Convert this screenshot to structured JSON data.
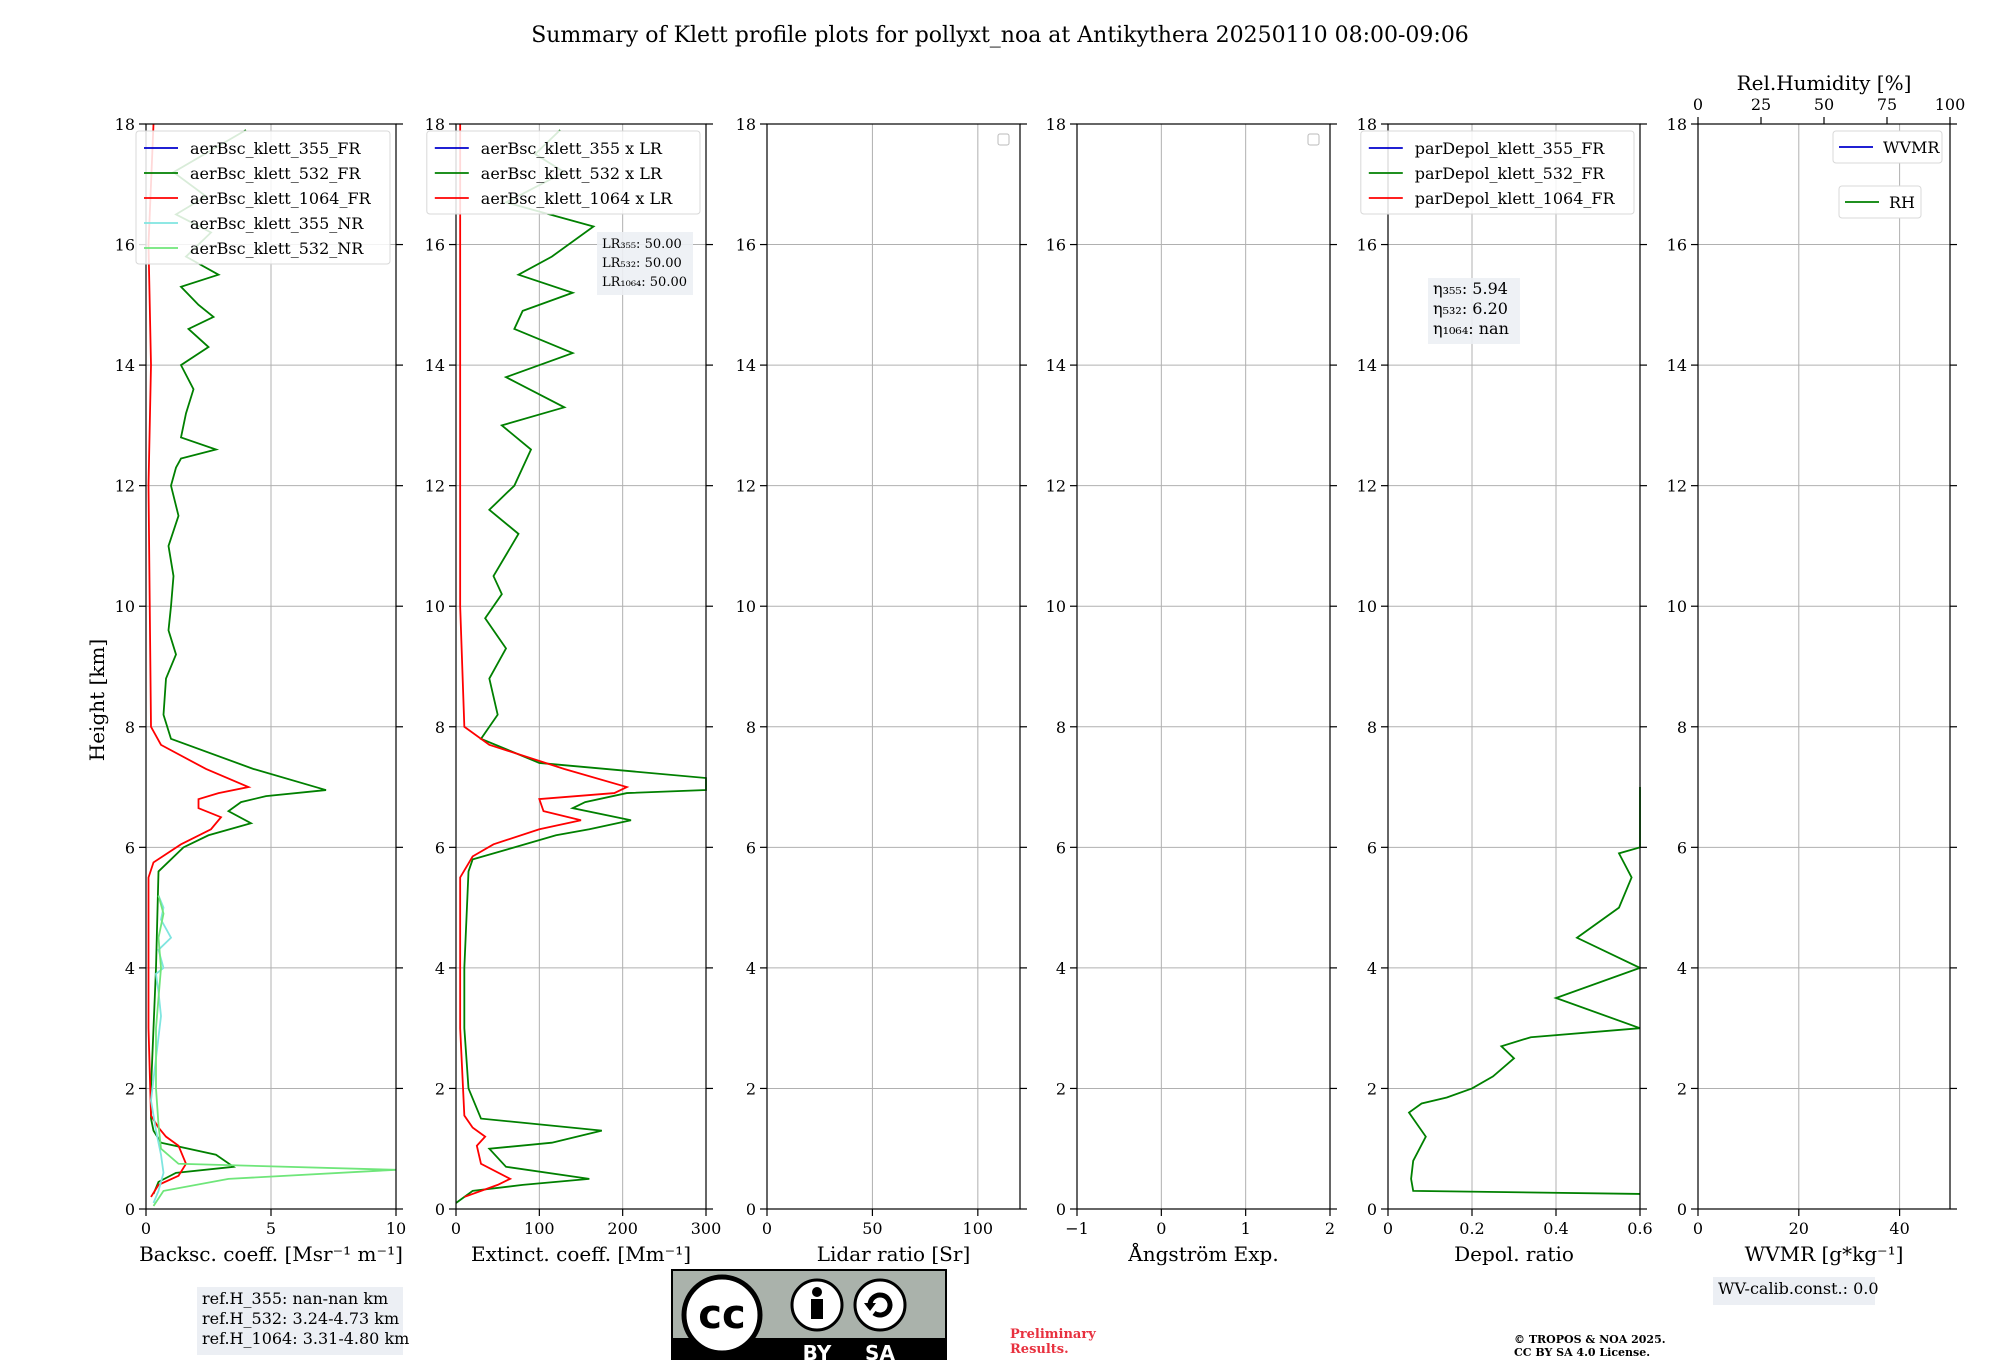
{
  "title": "Summary of Klett profile plots for pollyxt_noa at Antikythera 20250110 08:00-09:06",
  "ylabel": "Height [km]",
  "colors": {
    "blue": "#0000cd",
    "green": "#008000",
    "red": "#ff0000",
    "cyan": "#7fe5e0",
    "lightgreen": "#6fe67a",
    "grid": "#b0b0b0"
  },
  "chart_data": [
    {
      "type": "line",
      "xlabel": "Backsc. coeff. [Msr⁻¹ m⁻¹]",
      "xlim": [
        0,
        10
      ],
      "xticks": [
        0,
        5,
        10
      ],
      "ylim": [
        0,
        18
      ],
      "yticks": [
        0,
        2,
        4,
        6,
        8,
        10,
        12,
        14,
        16,
        18
      ],
      "grid": true,
      "legend": "top-right",
      "series": [
        {
          "name": "aerBsc_klett_355_FR",
          "color": "blue",
          "x": [],
          "y": []
        },
        {
          "name": "aerBsc_klett_532_FR",
          "color": "green",
          "x": [
            0.3,
            0.5,
            1.2,
            3.5,
            2.8,
            0.6,
            0.3,
            0.2,
            0.2,
            0.3,
            0.4,
            0.5,
            1.5,
            2.5,
            4.2,
            3.3,
            3.8,
            4.8,
            7.2,
            4.3,
            1.0,
            0.7,
            0.8,
            1.2,
            0.9,
            1.0,
            1.1,
            0.9,
            1.3,
            1.0,
            1.2,
            1.4,
            2.8,
            1.4,
            1.6,
            1.9,
            1.4,
            2.5,
            1.7,
            2.7,
            2.1,
            1.4,
            2.9,
            1.6,
            2.6,
            1.2,
            2.4,
            1.1,
            4.0
          ],
          "y": [
            0.25,
            0.45,
            0.6,
            0.7,
            0.9,
            1.1,
            1.3,
            1.5,
            2.0,
            3.0,
            4.0,
            5.6,
            6.0,
            6.2,
            6.4,
            6.6,
            6.75,
            6.85,
            6.95,
            7.3,
            7.8,
            8.2,
            8.8,
            9.2,
            9.6,
            10.0,
            10.5,
            11.0,
            11.5,
            12.0,
            12.3,
            12.45,
            12.6,
            12.8,
            13.2,
            13.6,
            14.0,
            14.3,
            14.6,
            14.8,
            15.0,
            15.3,
            15.5,
            15.8,
            16.2,
            16.5,
            16.8,
            17.2,
            17.9
          ]
        },
        {
          "name": "aerBsc_klett_1064_FR",
          "color": "red",
          "x": [
            0.2,
            0.5,
            1.3,
            1.6,
            1.3,
            0.8,
            0.5,
            0.2,
            0.1,
            0.1,
            0.3,
            1.4,
            2.6,
            3.0,
            2.1,
            2.1,
            2.9,
            4.1,
            2.4,
            0.6,
            0.2,
            0.15,
            0.1,
            0.2,
            0.1,
            0.3
          ],
          "y": [
            0.2,
            0.4,
            0.55,
            0.75,
            1.05,
            1.2,
            1.35,
            1.55,
            3.0,
            5.5,
            5.75,
            6.05,
            6.3,
            6.5,
            6.65,
            6.8,
            6.9,
            7.0,
            7.3,
            7.7,
            8.0,
            10.0,
            12.0,
            14.0,
            16.0,
            18.0
          ]
        },
        {
          "name": "aerBsc_klett_355_NR",
          "color": "cyan",
          "x": [
            0.3,
            0.5,
            0.7,
            0.6,
            0.4,
            0.2,
            0.6,
            0.5,
            0.4,
            0.7,
            0.5,
            1.0,
            0.6,
            0.7,
            0.5
          ],
          "y": [
            0.1,
            0.3,
            0.6,
            0.9,
            1.3,
            1.8,
            3.2,
            3.6,
            3.9,
            4.0,
            4.3,
            4.5,
            4.8,
            5.0,
            5.2
          ]
        },
        {
          "name": "aerBsc_klett_532_NR",
          "color": "lightgreen",
          "x": [
            0.3,
            0.7,
            3.3,
            10.0,
            1.3,
            0.6,
            0.5,
            0.4,
            0.4,
            0.6,
            0.5,
            0.7,
            0.5
          ],
          "y": [
            0.05,
            0.3,
            0.5,
            0.65,
            0.75,
            1.0,
            1.4,
            2.0,
            3.0,
            4.0,
            4.5,
            4.9,
            5.2
          ]
        }
      ],
      "notes": [
        "ref.H_355: nan-nan km",
        "ref.H_532: 3.24-4.73 km",
        "ref.H_1064: 3.31-4.80 km"
      ]
    },
    {
      "type": "line",
      "xlabel": "Extinct. coeff. [Mm⁻¹]",
      "xlim": [
        0,
        300
      ],
      "xticks": [
        0,
        100,
        200,
        300
      ],
      "ylim": [
        0,
        18
      ],
      "yticks": [
        0,
        2,
        4,
        6,
        8,
        10,
        12,
        14,
        16,
        18
      ],
      "grid": true,
      "legend": "top-right",
      "series": [
        {
          "name": "aerBsc_klett_355 x LR",
          "color": "blue",
          "x": [],
          "y": []
        },
        {
          "name": "aerBsc_klett_532 x LR",
          "color": "green",
          "x": [
            0,
            20,
            80,
            160,
            60,
            40,
            115,
            175,
            30,
            15,
            10,
            10,
            15,
            20,
            70,
            120,
            160,
            210,
            140,
            155,
            205,
            300,
            300,
            100,
            30,
            50,
            40,
            60,
            35,
            55,
            45,
            75,
            40,
            70,
            90,
            55,
            130,
            60,
            140,
            70,
            80,
            140,
            75,
            115,
            165,
            60,
            130,
            95,
            125
          ],
          "y": [
            0.1,
            0.3,
            0.4,
            0.5,
            0.7,
            1.0,
            1.1,
            1.3,
            1.5,
            2.0,
            3.0,
            4.0,
            5.6,
            5.8,
            6.0,
            6.2,
            6.3,
            6.45,
            6.65,
            6.75,
            6.9,
            6.95,
            7.15,
            7.4,
            7.8,
            8.2,
            8.8,
            9.3,
            9.8,
            10.2,
            10.5,
            11.2,
            11.6,
            12.0,
            12.6,
            13.0,
            13.3,
            13.8,
            14.2,
            14.6,
            14.9,
            15.2,
            15.5,
            15.8,
            16.3,
            16.7,
            17.2,
            17.5,
            17.9
          ]
        },
        {
          "name": "aerBsc_klett_1064 x LR",
          "color": "red",
          "x": [
            10,
            50,
            65,
            30,
            25,
            35,
            20,
            10,
            5,
            5,
            20,
            45,
            100,
            150,
            105,
            100,
            190,
            205,
            130,
            40,
            10,
            5,
            5,
            5,
            5
          ],
          "y": [
            0.2,
            0.4,
            0.5,
            0.75,
            1.05,
            1.2,
            1.35,
            1.55,
            3.0,
            5.5,
            5.85,
            6.05,
            6.3,
            6.45,
            6.6,
            6.8,
            6.9,
            7.0,
            7.3,
            7.7,
            8.0,
            10.0,
            12.0,
            14.0,
            18.0
          ]
        }
      ],
      "annotation": [
        "LR₃₅₅: 50.00",
        "LR₅₃₂: 50.00",
        "LR₁₀₆₄: 50.00"
      ]
    },
    {
      "type": "line",
      "xlabel": "Lidar ratio [Sr]",
      "xlim": [
        0,
        120
      ],
      "xticks": [
        0,
        50,
        100
      ],
      "ylim": [
        0,
        18
      ],
      "yticks": [
        0,
        2,
        4,
        6,
        8,
        10,
        12,
        14,
        16,
        18
      ],
      "grid": true,
      "legend": "top-right",
      "series": []
    },
    {
      "type": "line",
      "xlabel": "Ångström Exp.",
      "xlim": [
        -1,
        2
      ],
      "xticks": [
        -1,
        0,
        1,
        2
      ],
      "ylim": [
        0,
        18
      ],
      "yticks": [
        0,
        2,
        4,
        6,
        8,
        10,
        12,
        14,
        16,
        18
      ],
      "grid": true,
      "legend": "top-right",
      "series": []
    },
    {
      "type": "line",
      "xlabel": "Depol. ratio",
      "xlim": [
        0,
        0.6
      ],
      "xticks": [
        0,
        0.2,
        0.4,
        0.6
      ],
      "ylim": [
        0,
        18
      ],
      "yticks": [
        0,
        2,
        4,
        6,
        8,
        10,
        12,
        14,
        16,
        18
      ],
      "grid": true,
      "legend": "top-right",
      "series": [
        {
          "name": "parDepol_klett_355_FR",
          "color": "blue",
          "x": [],
          "y": []
        },
        {
          "name": "parDepol_klett_532_FR",
          "color": "green",
          "x": [
            0.6,
            0.06,
            0.055,
            0.06,
            0.09,
            0.06,
            0.05,
            0.08,
            0.14,
            0.2,
            0.25,
            0.3,
            0.27,
            0.34,
            0.6,
            0.4,
            0.6,
            0.45,
            0.55,
            0.58,
            0.55,
            0.6,
            0.6,
            0.6
          ],
          "y": [
            0.25,
            0.3,
            0.5,
            0.8,
            1.2,
            1.5,
            1.6,
            1.75,
            1.85,
            2.0,
            2.2,
            2.5,
            2.7,
            2.85,
            3.0,
            3.5,
            4.0,
            4.5,
            5.0,
            5.5,
            5.9,
            6.0,
            6.5,
            7.0
          ]
        },
        {
          "name": "parDepol_klett_1064_FR",
          "color": "red",
          "x": [],
          "y": []
        }
      ],
      "annotation": [
        "η₃₅₅: 5.94",
        "η₅₃₂: 6.20",
        "η₁₀₆₄: nan"
      ]
    },
    {
      "type": "line",
      "xlabel": "WVMR [g*kg⁻¹]",
      "xlim": [
        0,
        50
      ],
      "xticks": [
        0,
        20,
        40
      ],
      "ylim": [
        0,
        18
      ],
      "yticks": [
        0,
        2,
        4,
        6,
        8,
        10,
        12,
        14,
        16,
        18
      ],
      "grid": true,
      "top_xlabel": "Rel.Humidity [%]",
      "top_xlim": [
        0,
        100
      ],
      "top_xticks": [
        0,
        25,
        50,
        75,
        100
      ],
      "series": [
        {
          "name": "WVMR",
          "color": "blue",
          "x": [],
          "y": []
        },
        {
          "name": "RH",
          "color": "green",
          "x": [],
          "y": []
        }
      ],
      "notes": [
        "WV-calib.const.: 0.0"
      ]
    }
  ],
  "license": {
    "by": "BY",
    "sa": "SA",
    "cc": "cc"
  },
  "preliminary": [
    "Preliminary",
    "Results."
  ],
  "copyright": [
    "© TROPOS & NOA 2025.",
    "CC BY SA 4.0 License."
  ]
}
